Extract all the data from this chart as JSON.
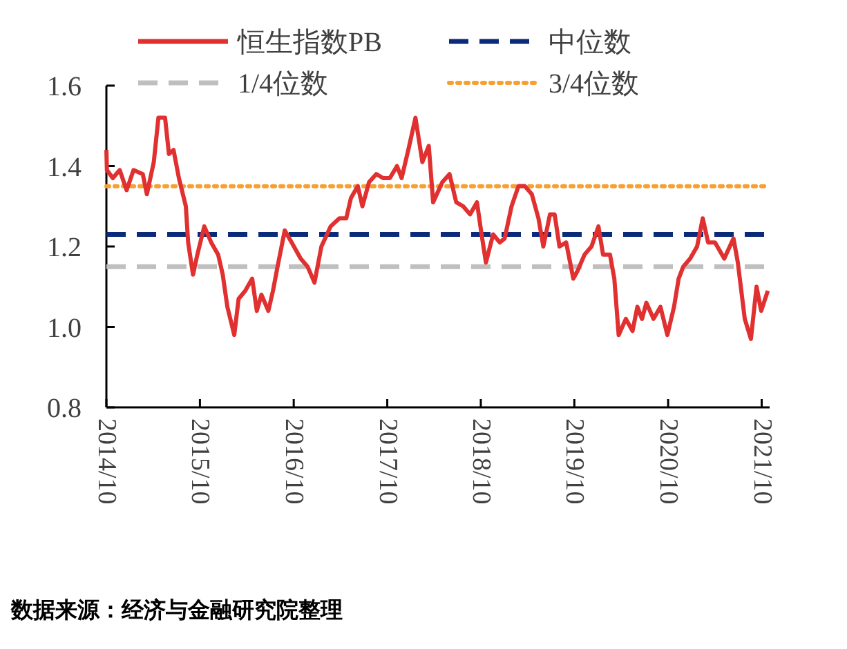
{
  "chart_data": {
    "type": "line",
    "line_style": "solid",
    "grid": false,
    "legend": "top",
    "xlim": [
      "2014-10-01",
      "2021-11-01"
    ],
    "xticks": [
      {
        "value": "2014-10-01",
        "label": "2014/10"
      },
      {
        "value": "2015-10-01",
        "label": "2015/10"
      },
      {
        "value": "2016-10-01",
        "label": "2016/10"
      },
      {
        "value": "2017-10-01",
        "label": "2017/10"
      },
      {
        "value": "2018-10-01",
        "label": "2018/10"
      },
      {
        "value": "2019-10-01",
        "label": "2019/10"
      },
      {
        "value": "2020-10-01",
        "label": "2020/10"
      },
      {
        "value": "2021-10-01",
        "label": "2021/10"
      }
    ],
    "ylim": [
      0.8,
      1.6
    ],
    "yticks": [
      {
        "value": 0.8,
        "label": "0.8"
      },
      {
        "value": 1.0,
        "label": "1.0"
      },
      {
        "value": 1.2,
        "label": "1.2"
      },
      {
        "value": 1.4,
        "label": "1.4"
      },
      {
        "value": 1.6,
        "label": "1.6"
      }
    ],
    "x": [
      "2014-10-01",
      "2014-10-03",
      "2014-10-26",
      "2014-11-22",
      "2014-12-19",
      "2015-01-15",
      "2015-02-20",
      "2015-03-08",
      "2015-04-04",
      "2015-04-22",
      "2015-05-18",
      "2015-06-02",
      "2015-06-20",
      "2015-07-11",
      "2015-08-07",
      "2015-08-16",
      "2015-09-04",
      "2015-09-21",
      "2015-10-18",
      "2015-11-14",
      "2015-12-11",
      "2015-12-29",
      "2016-01-16",
      "2016-02-12",
      "2016-02-29",
      "2016-03-26",
      "2016-04-22",
      "2016-05-10",
      "2016-05-28",
      "2016-06-24",
      "2016-07-12",
      "2016-07-30",
      "2016-08-27",
      "2016-09-23",
      "2016-10-28",
      "2016-11-24",
      "2016-12-21",
      "2017-01-17",
      "2017-02-22",
      "2017-03-28",
      "2017-04-24",
      "2017-05-12",
      "2017-06-08",
      "2017-06-26",
      "2017-07-22",
      "2017-08-19",
      "2017-09-15",
      "2017-10-11",
      "2017-11-08",
      "2017-11-26",
      "2017-12-22",
      "2018-01-19",
      "2018-02-15",
      "2018-03-12",
      "2018-03-29",
      "2018-05-04",
      "2018-06-01",
      "2018-06-27",
      "2018-07-24",
      "2018-08-20",
      "2018-09-16",
      "2018-10-04",
      "2018-10-21",
      "2018-11-18",
      "2018-12-14",
      "2019-01-02",
      "2019-01-29",
      "2019-02-25",
      "2019-03-22",
      "2019-04-18",
      "2019-05-14",
      "2019-06-02",
      "2019-06-28",
      "2019-07-16",
      "2019-08-04",
      "2019-08-30",
      "2019-09-27",
      "2019-10-14",
      "2019-11-10",
      "2019-12-07",
      "2020-01-03",
      "2020-01-21",
      "2020-02-17",
      "2020-03-05",
      "2020-03-22",
      "2020-04-19",
      "2020-05-15",
      "2020-06-03",
      "2020-06-21",
      "2020-07-08",
      "2020-08-05",
      "2020-09-01",
      "2020-09-28",
      "2020-10-24",
      "2020-11-11",
      "2020-11-29",
      "2020-12-26",
      "2021-01-22",
      "2021-02-13",
      "2021-03-06",
      "2021-04-02",
      "2021-05-08",
      "2021-06-13",
      "2021-06-30",
      "2021-07-27",
      "2021-08-20",
      "2021-09-11",
      "2021-09-29",
      "2021-10-25"
    ],
    "series": [
      {
        "name": "恒生指数PB",
        "color": "#e03030",
        "values": [
          1.44,
          1.39,
          1.37,
          1.39,
          1.34,
          1.39,
          1.38,
          1.33,
          1.41,
          1.52,
          1.52,
          1.43,
          1.44,
          1.37,
          1.3,
          1.21,
          1.13,
          1.18,
          1.25,
          1.21,
          1.18,
          1.13,
          1.05,
          0.98,
          1.07,
          1.09,
          1.12,
          1.04,
          1.08,
          1.04,
          1.09,
          1.15,
          1.24,
          1.21,
          1.17,
          1.15,
          1.11,
          1.2,
          1.25,
          1.27,
          1.27,
          1.32,
          1.35,
          1.3,
          1.36,
          1.38,
          1.37,
          1.37,
          1.4,
          1.37,
          1.44,
          1.52,
          1.41,
          1.45,
          1.31,
          1.36,
          1.38,
          1.31,
          1.3,
          1.28,
          1.31,
          1.23,
          1.16,
          1.23,
          1.21,
          1.22,
          1.3,
          1.35,
          1.35,
          1.33,
          1.27,
          1.2,
          1.28,
          1.28,
          1.2,
          1.21,
          1.12,
          1.14,
          1.18,
          1.2,
          1.25,
          1.18,
          1.18,
          1.12,
          0.98,
          1.02,
          0.99,
          1.05,
          1.02,
          1.06,
          1.02,
          1.05,
          0.98,
          1.05,
          1.12,
          1.15,
          1.17,
          1.2,
          1.27,
          1.21,
          1.21,
          1.17,
          1.22,
          1.16,
          1.02,
          0.97,
          1.1,
          1.04,
          1.09
        ]
      }
    ],
    "ref_lines": [
      {
        "axis": "y",
        "value": 1.23,
        "label": "中位数",
        "color": "#0a2a7a",
        "line_style": "dashed"
      },
      {
        "axis": "y",
        "value": 1.15,
        "label": "1/4位数",
        "color": "#bfbfbf",
        "line_style": "dashed"
      },
      {
        "axis": "y",
        "value": 1.35,
        "label": "3/4位数",
        "color": "#f5a030",
        "line_style": "dotted"
      }
    ],
    "annotations": [
      "数据来源：经济与金融研究院整理"
    ]
  }
}
